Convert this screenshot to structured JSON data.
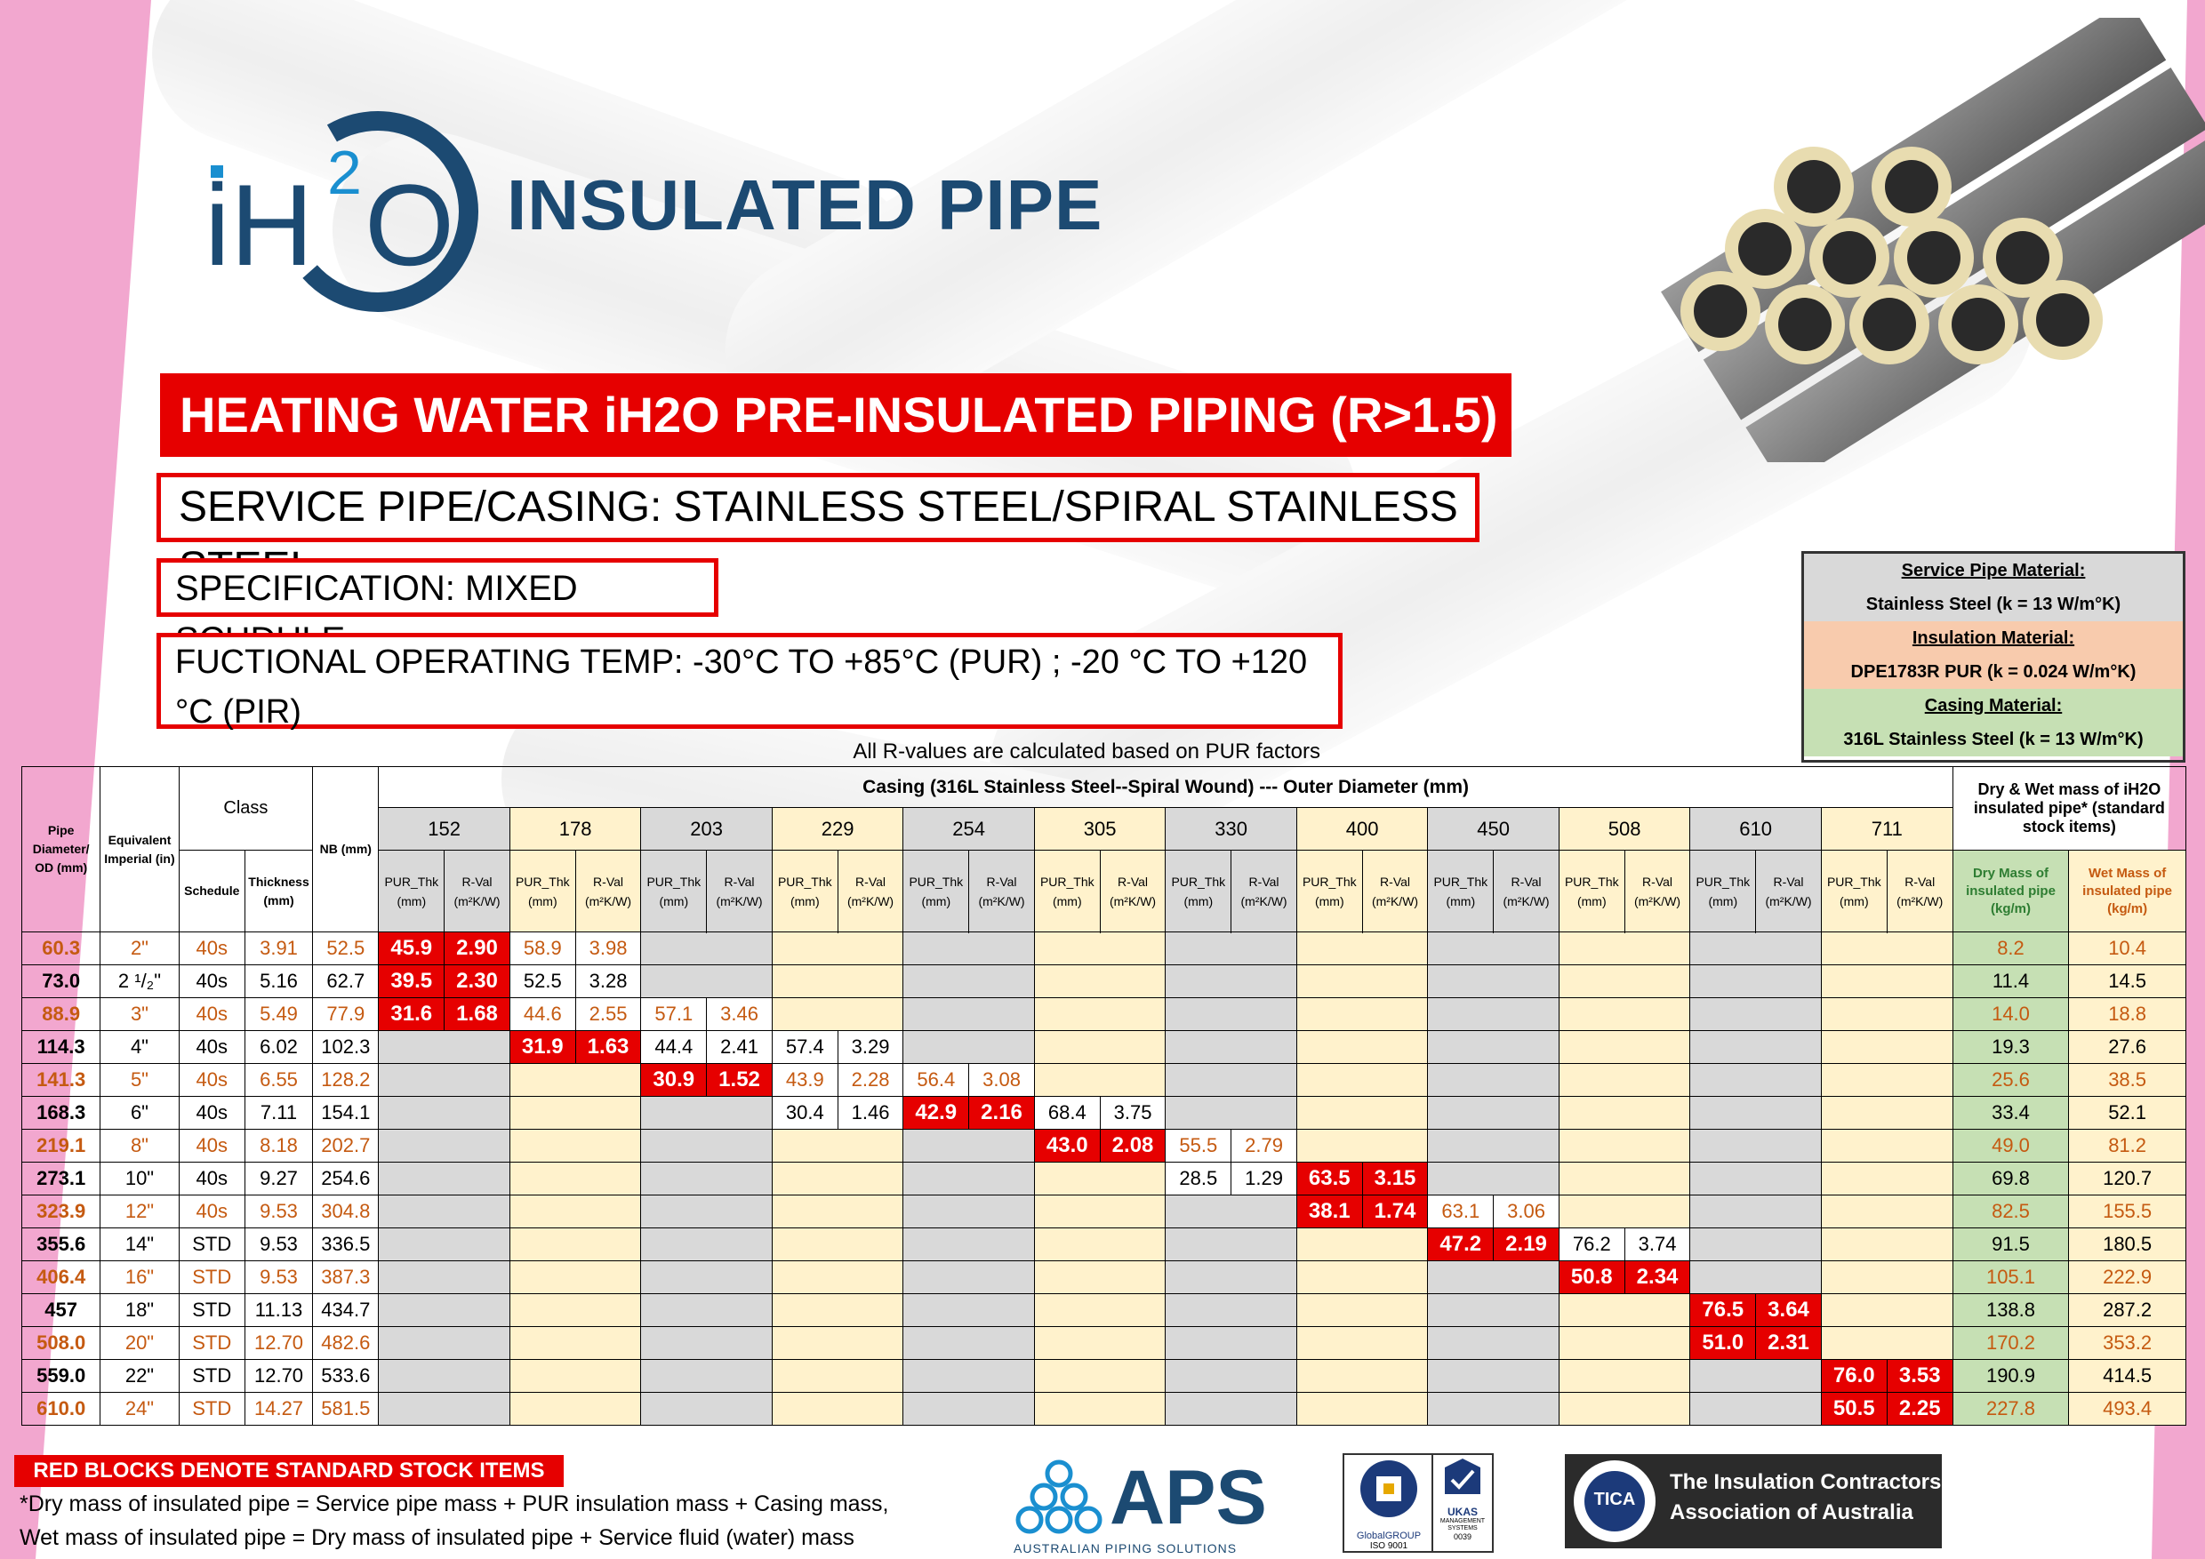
{
  "brand": {
    "logo_text": "iH2O",
    "title": "INSULATED PIPE"
  },
  "banner": "HEATING WATER iH2O PRE-INSULATED PIPING (R>1.5)",
  "service": "SERVICE PIPE/CASING: STAINLESS STEEL/SPIRAL STAINLESS STEEL",
  "specification": "SPECIFICATION: MIXED SCHDULE",
  "temp": "FUCTIONAL OPERATING TEMP: -30°C TO +85°C (PUR) ; -20 °C TO +120 °C (PIR)",
  "rnote": "All R-values are calculated based on PUR factors",
  "materials": {
    "service_head": "Service Pipe Material:",
    "service_val": "Stainless Steel    (k = 13 W/m°K)",
    "ins_head": "Insulation Material:",
    "ins_val": "DPE1783R PUR    (k = 0.024 W/m°K)",
    "casing_head": "Casing Material:",
    "casing_val": "316L Stainless Steel    (k = 13 W/m°K)"
  },
  "table": {
    "h_pipe": "Pipe Diameter/ OD (mm)",
    "h_imp": "Equivalent Imperial (in)",
    "h_class": "Class",
    "h_sched": "Schedule",
    "h_thick": "Thickness (mm)",
    "h_nb": "NB (mm)",
    "h_casing": "Casing (316L Stainless Steel--Spiral Wound) --- Outer Diameter (mm)",
    "h_mass": "Dry & Wet mass of iH2O insulated pipe* (standard stock items)",
    "h_pur": "PUR_Thk (mm)",
    "h_rval": "R-Val (m²K/W)",
    "h_dry": "Dry Mass of insulated pipe (kg/m)",
    "h_wet": "Wet Mass of insulated pipe (kg/m)",
    "casings": [
      "152",
      "178",
      "203",
      "229",
      "254",
      "305",
      "330",
      "400",
      "450",
      "508",
      "610",
      "711"
    ],
    "rows": [
      {
        "od": "60.3",
        "imp": "2\"",
        "sch": "40s",
        "thk": "3.91",
        "nb": "52.5",
        "dry": "8.2",
        "wet": "10.4",
        "c": [
          [
            "45.9",
            "2.90",
            "r"
          ],
          [
            "58.9",
            "3.98",
            "w"
          ]
        ]
      },
      {
        "od": "73.0",
        "imp": "2 ¹/₂\"",
        "sch": "40s",
        "thk": "5.16",
        "nb": "62.7",
        "dry": "11.4",
        "wet": "14.5",
        "c": [
          [
            "39.5",
            "2.30",
            "r"
          ],
          [
            "52.5",
            "3.28",
            "w"
          ]
        ]
      },
      {
        "od": "88.9",
        "imp": "3\"",
        "sch": "40s",
        "thk": "5.49",
        "nb": "77.9",
        "dry": "14.0",
        "wet": "18.8",
        "c": [
          [
            "31.6",
            "1.68",
            "r"
          ],
          [
            "44.6",
            "2.55",
            "w"
          ],
          [
            "57.1",
            "3.46",
            "w"
          ]
        ]
      },
      {
        "od": "114.3",
        "imp": "4\"",
        "sch": "40s",
        "thk": "6.02",
        "nb": "102.3",
        "dry": "19.3",
        "wet": "27.6",
        "c": [
          null,
          [
            "31.9",
            "1.63",
            "r"
          ],
          [
            "44.4",
            "2.41",
            "w"
          ],
          [
            "57.4",
            "3.29",
            "w"
          ]
        ]
      },
      {
        "od": "141.3",
        "imp": "5\"",
        "sch": "40s",
        "thk": "6.55",
        "nb": "128.2",
        "dry": "25.6",
        "wet": "38.5",
        "c": [
          null,
          null,
          [
            "30.9",
            "1.52",
            "r"
          ],
          [
            "43.9",
            "2.28",
            "w"
          ],
          [
            "56.4",
            "3.08",
            "w"
          ]
        ]
      },
      {
        "od": "168.3",
        "imp": "6\"",
        "sch": "40s",
        "thk": "7.11",
        "nb": "154.1",
        "dry": "33.4",
        "wet": "52.1",
        "c": [
          null,
          null,
          null,
          [
            "30.4",
            "1.46",
            "w"
          ],
          [
            "42.9",
            "2.16",
            "r"
          ],
          [
            "68.4",
            "3.75",
            "w"
          ]
        ]
      },
      {
        "od": "219.1",
        "imp": "8\"",
        "sch": "40s",
        "thk": "8.18",
        "nb": "202.7",
        "dry": "49.0",
        "wet": "81.2",
        "c": [
          null,
          null,
          null,
          null,
          null,
          [
            "43.0",
            "2.08",
            "r"
          ],
          [
            "55.5",
            "2.79",
            "w"
          ]
        ]
      },
      {
        "od": "273.1",
        "imp": "10\"",
        "sch": "40s",
        "thk": "9.27",
        "nb": "254.6",
        "dry": "69.8",
        "wet": "120.7",
        "c": [
          null,
          null,
          null,
          null,
          null,
          null,
          [
            "28.5",
            "1.29",
            "w"
          ],
          [
            "63.5",
            "3.15",
            "r"
          ]
        ]
      },
      {
        "od": "323.9",
        "imp": "12\"",
        "sch": "40s",
        "thk": "9.53",
        "nb": "304.8",
        "dry": "82.5",
        "wet": "155.5",
        "c": [
          null,
          null,
          null,
          null,
          null,
          null,
          null,
          [
            "38.1",
            "1.74",
            "r"
          ],
          [
            "63.1",
            "3.06",
            "w"
          ]
        ]
      },
      {
        "od": "355.6",
        "imp": "14\"",
        "sch": "STD",
        "thk": "9.53",
        "nb": "336.5",
        "dry": "91.5",
        "wet": "180.5",
        "c": [
          null,
          null,
          null,
          null,
          null,
          null,
          null,
          null,
          [
            "47.2",
            "2.19",
            "r"
          ],
          [
            "76.2",
            "3.74",
            "w"
          ]
        ]
      },
      {
        "od": "406.4",
        "imp": "16\"",
        "sch": "STD",
        "thk": "9.53",
        "nb": "387.3",
        "dry": "105.1",
        "wet": "222.9",
        "c": [
          null,
          null,
          null,
          null,
          null,
          null,
          null,
          null,
          null,
          [
            "50.8",
            "2.34",
            "r"
          ]
        ]
      },
      {
        "od": "457",
        "imp": "18\"",
        "sch": "STD",
        "thk": "11.13",
        "nb": "434.7",
        "dry": "138.8",
        "wet": "287.2",
        "c": [
          null,
          null,
          null,
          null,
          null,
          null,
          null,
          null,
          null,
          null,
          [
            "76.5",
            "3.64",
            "r"
          ]
        ]
      },
      {
        "od": "508.0",
        "imp": "20\"",
        "sch": "STD",
        "thk": "12.70",
        "nb": "482.6",
        "dry": "170.2",
        "wet": "353.2",
        "c": [
          null,
          null,
          null,
          null,
          null,
          null,
          null,
          null,
          null,
          null,
          [
            "51.0",
            "2.31",
            "r"
          ]
        ]
      },
      {
        "od": "559.0",
        "imp": "22\"",
        "sch": "STD",
        "thk": "12.70",
        "nb": "533.6",
        "dry": "190.9",
        "wet": "414.5",
        "c": [
          null,
          null,
          null,
          null,
          null,
          null,
          null,
          null,
          null,
          null,
          null,
          [
            "76.0",
            "3.53",
            "r"
          ]
        ]
      },
      {
        "od": "610.0",
        "imp": "24\"",
        "sch": "STD",
        "thk": "14.27",
        "nb": "581.5",
        "dry": "227.8",
        "wet": "493.4",
        "c": [
          null,
          null,
          null,
          null,
          null,
          null,
          null,
          null,
          null,
          null,
          null,
          [
            "50.5",
            "2.25",
            "r"
          ]
        ]
      }
    ]
  },
  "footer": {
    "red_note": "RED BLOCKS DENOTE STANDARD STOCK ITEMS",
    "dry_note": "*Dry mass of insulated pipe = Service pipe mass + PUR insulation mass + Casing mass,",
    "wet_note": "Wet mass of insulated pipe = Dry mass of insulated pipe + Service fluid (water) mass",
    "aps_name": "APS",
    "aps_sub": "AUSTRALIAN PIPING SOLUTIONS",
    "iso_global": "GlobalGROUP",
    "iso_std": "ISO 9001",
    "ukas": "UKAS",
    "ukas_sub": "MANAGEMENT SYSTEMS",
    "ukas_num": "0039",
    "tica_badge": "TICA",
    "tica_line1": "The Insulation Contractors",
    "tica_line2": "Association of Australia"
  }
}
